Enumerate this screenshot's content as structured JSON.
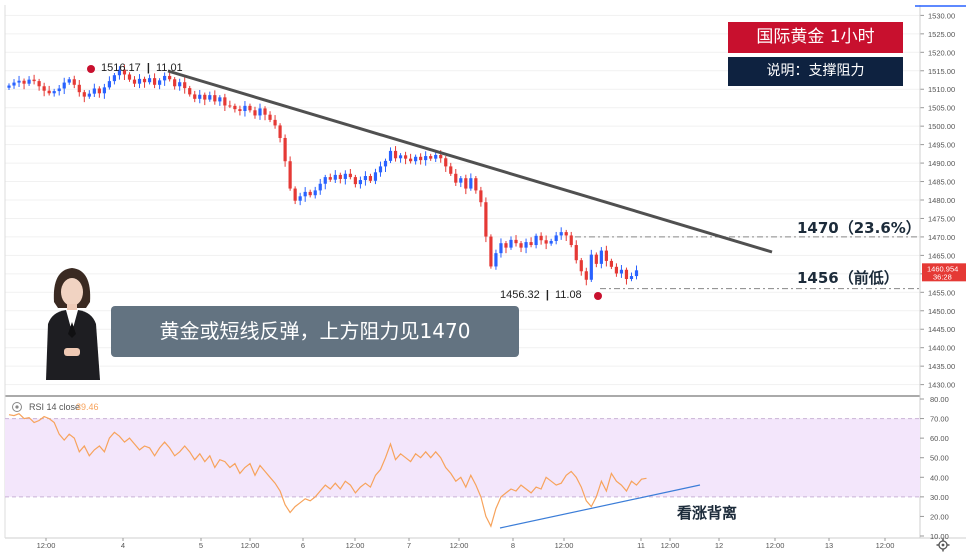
{
  "header": {
    "title": "国际黄金  1小时",
    "note": "说明：支撑阻力"
  },
  "caption": "黄金或短线反弹，上方阻力见1470",
  "levels": {
    "resistance_label": "1470（23.6%）",
    "support_label": "1456（前低）",
    "resistance": 1470,
    "support": 1456
  },
  "annotations": {
    "high_price": "1516.17",
    "high_time": "11.01",
    "low_price": "1456.32",
    "low_time": "11.08",
    "rsi_divergence": "看涨背离"
  },
  "colors": {
    "up": "#2962ff",
    "down": "#e53935",
    "trendline": "#505050",
    "title_bg": "#c8102e",
    "note_bg": "#0e2240",
    "rsi_line": "#f7a35c",
    "rsi_band": "#f3e6fb"
  },
  "chart_data": [
    {
      "type": "candlestick",
      "name": "price",
      "ylim": [
        1428,
        1532
      ],
      "y_ticks": [
        "1530.00",
        "1525.00",
        "1520.00",
        "1515.00",
        "1510.00",
        "1505.00",
        "1500.00",
        "1495.00",
        "1490.00",
        "1485.00",
        "1480.00",
        "1475.00",
        "1470.00",
        "1465.00",
        "1460.00",
        "1455.00",
        "1450.00",
        "1445.00",
        "1440.00",
        "1435.00",
        "1430.00"
      ],
      "last_price": "1460.954",
      "countdown": "36:28",
      "close": [
        1511.0,
        1511.8,
        1512.3,
        1511.5,
        1512.6,
        1512.2,
        1510.8,
        1509.6,
        1508.9,
        1509.5,
        1510.2,
        1511.8,
        1512.7,
        1511.2,
        1509.2,
        1508.0,
        1508.8,
        1510.2,
        1508.9,
        1510.5,
        1512.2,
        1513.8,
        1515.3,
        1514.0,
        1512.6,
        1511.5,
        1512.8,
        1511.9,
        1513.0,
        1511.2,
        1512.4,
        1513.6,
        1512.7,
        1510.8,
        1511.9,
        1510.3,
        1508.6,
        1507.4,
        1508.5,
        1507.2,
        1508.4,
        1506.7,
        1507.8,
        1505.6,
        1505.5,
        1504.6,
        1504.1,
        1505.5,
        1504.3,
        1502.9,
        1504.8,
        1503.1,
        1501.7,
        1500.2,
        1496.8,
        1490.5,
        1483.1,
        1479.8,
        1481.0,
        1482.2,
        1481.3,
        1482.6,
        1484.4,
        1486.2,
        1485.5,
        1486.8,
        1485.7,
        1487.1,
        1486.2,
        1484.3,
        1485.4,
        1486.5,
        1485.2,
        1487.5,
        1489.1,
        1490.6,
        1493.3,
        1491.3,
        1492.1,
        1491.2,
        1490.5,
        1491.7,
        1490.8,
        1491.9,
        1491.2,
        1492.2,
        1491.3,
        1489.1,
        1487.1,
        1484.7,
        1485.9,
        1483.1,
        1485.9,
        1482.6,
        1479.4,
        1470.1,
        1462.0,
        1465.6,
        1468.3,
        1467.1,
        1469.2,
        1468.3,
        1467.1,
        1468.6,
        1467.8,
        1470.3,
        1469.1,
        1468.2,
        1468.9,
        1470.4,
        1471.3,
        1470.4,
        1467.8,
        1463.7,
        1460.7,
        1458.4,
        1465.2,
        1462.7,
        1466.3,
        1463.5,
        1461.9,
        1460.1,
        1461.1,
        1458.6,
        1459.4,
        1460.954
      ],
      "x_ticks": [
        "12:00",
        "4",
        "5",
        "12:00",
        "6",
        "12:00",
        "7",
        "12:00",
        "8",
        "12:00",
        "11",
        "12:00",
        "12",
        "12:00",
        "13",
        "12:00"
      ]
    },
    {
      "type": "line",
      "name": "RSI 14 close",
      "value_label": "39.46",
      "ylim": [
        10,
        80
      ],
      "band": [
        30,
        70
      ],
      "y_ticks": [
        "80.00",
        "70.00",
        "60.00",
        "50.00",
        "40.00",
        "30.00",
        "20.00",
        "10.00"
      ],
      "values": [
        72,
        71.5,
        72.5,
        70,
        70.5,
        68,
        69,
        71,
        70,
        68,
        62,
        59,
        62,
        60,
        53,
        56,
        51,
        54,
        56,
        53,
        60,
        63,
        61,
        58,
        60,
        57,
        54,
        56,
        55,
        51,
        55,
        58,
        55,
        51,
        53,
        56,
        53,
        49,
        52,
        48,
        51,
        45,
        49,
        48,
        45,
        47,
        42,
        45,
        47,
        41,
        46,
        43,
        40,
        37,
        33,
        26,
        22,
        25,
        27,
        29,
        28,
        30,
        33,
        36,
        34,
        37,
        34,
        38,
        36,
        32,
        35,
        37,
        35,
        41,
        44,
        50,
        57,
        49,
        52,
        50,
        48,
        52,
        50,
        53,
        50,
        53,
        50,
        45,
        42,
        38,
        40,
        35,
        41,
        36,
        30,
        20,
        15,
        24,
        30,
        32,
        34,
        33,
        36,
        34,
        32,
        35,
        34,
        40,
        38,
        36,
        37,
        41,
        43,
        40,
        35,
        28,
        25,
        30,
        38,
        33,
        42,
        38,
        36,
        33,
        38,
        36,
        39,
        39.46
      ]
    }
  ]
}
